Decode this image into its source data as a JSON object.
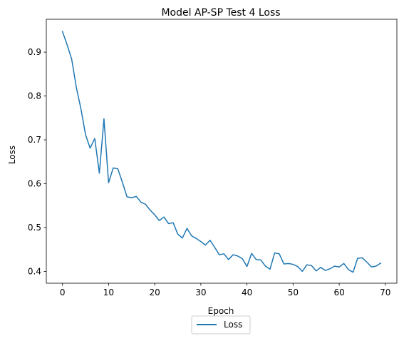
{
  "chart_data": {
    "type": "line",
    "title": "Model AP-SP Test 4 Loss",
    "xlabel": "Epoch",
    "ylabel": "Loss",
    "xlim": [
      -3.5,
      72.5
    ],
    "ylim": [
      0.373,
      0.975
    ],
    "xticks": [
      0,
      10,
      20,
      30,
      40,
      50,
      60,
      70
    ],
    "yticks": [
      0.4,
      0.5,
      0.6,
      0.7,
      0.8,
      0.9
    ],
    "ytick_labels": [
      "0.4",
      "0.5",
      "0.6",
      "0.7",
      "0.8",
      "0.9"
    ],
    "grid": false,
    "legend_position": "below plot, centered",
    "series": [
      {
        "name": "Loss",
        "color": "#1f77b4",
        "x": [
          0,
          1,
          2,
          3,
          4,
          5,
          6,
          7,
          8,
          9,
          10,
          11,
          12,
          13,
          14,
          15,
          16,
          17,
          18,
          19,
          20,
          21,
          22,
          23,
          24,
          25,
          26,
          27,
          28,
          29,
          30,
          31,
          32,
          33,
          34,
          35,
          36,
          37,
          38,
          39,
          40,
          41,
          42,
          43,
          44,
          45,
          46,
          47,
          48,
          49,
          50,
          51,
          52,
          53,
          54,
          55,
          56,
          57,
          58,
          59,
          60,
          61,
          62,
          63,
          64,
          65,
          66,
          67,
          68,
          69
        ],
        "values": [
          0.947,
          0.917,
          0.884,
          0.82,
          0.771,
          0.712,
          0.681,
          0.703,
          0.624,
          0.748,
          0.602,
          0.636,
          0.634,
          0.603,
          0.57,
          0.568,
          0.571,
          0.558,
          0.553,
          0.54,
          0.529,
          0.516,
          0.524,
          0.509,
          0.511,
          0.485,
          0.476,
          0.498,
          0.481,
          0.475,
          0.468,
          0.46,
          0.471,
          0.455,
          0.438,
          0.44,
          0.427,
          0.438,
          0.435,
          0.429,
          0.411,
          0.441,
          0.427,
          0.426,
          0.412,
          0.405,
          0.442,
          0.44,
          0.417,
          0.418,
          0.416,
          0.411,
          0.4,
          0.415,
          0.413,
          0.401,
          0.409,
          0.402,
          0.406,
          0.412,
          0.41,
          0.418,
          0.404,
          0.398,
          0.43,
          0.431,
          0.421,
          0.41,
          0.412,
          0.419
        ]
      }
    ]
  }
}
